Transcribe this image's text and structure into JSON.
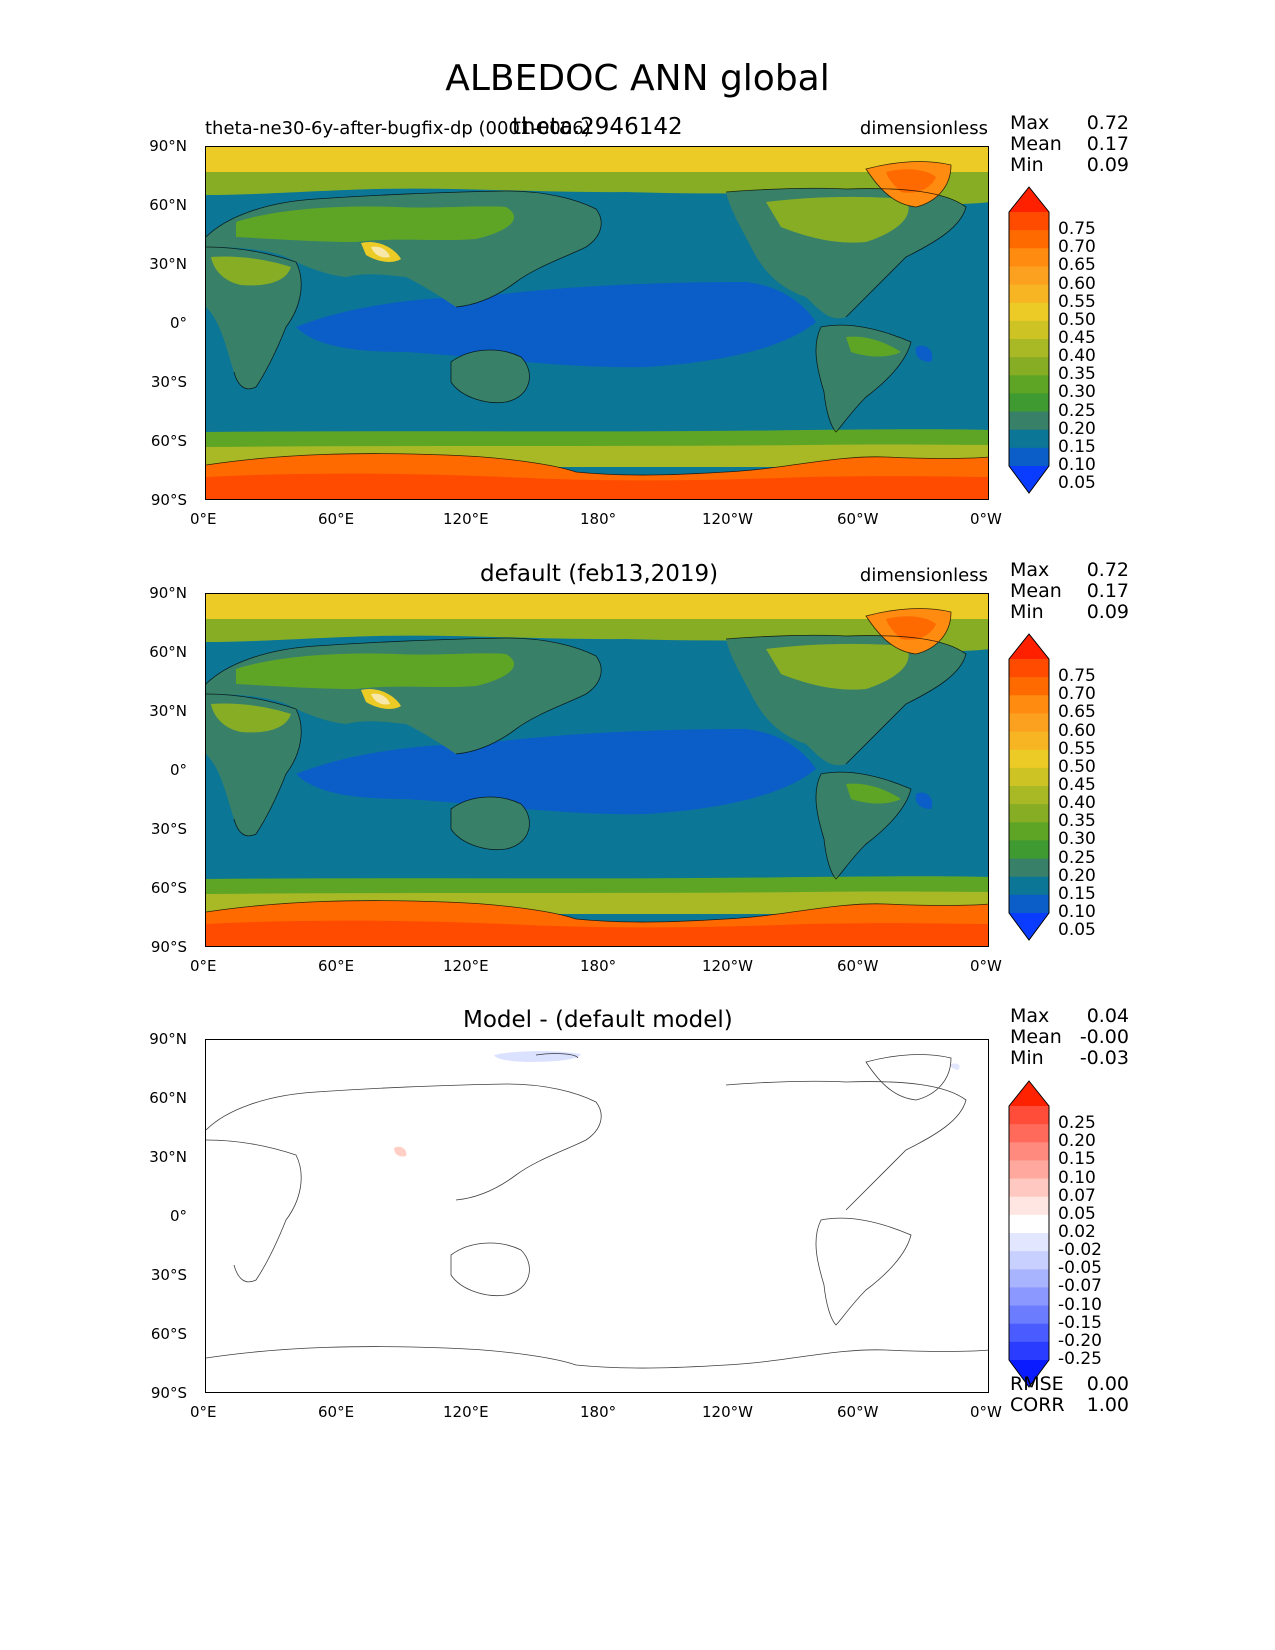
{
  "suptitle": "ALBEDOC ANN global",
  "panels": [
    {
      "left_title": "theta-ne30-6y-after-bugfix-dp (0001-0006)",
      "center_title": "theta.2946142",
      "right_title": "dimensionless",
      "stats": {
        "max_label": "Max",
        "max": "0.72",
        "mean_label": "Mean",
        "mean": "0.17",
        "min_label": "Min",
        "min": "0.09"
      },
      "colorbar_labels": [
        "0.75",
        "0.70",
        "0.65",
        "0.60",
        "0.55",
        "0.50",
        "0.45",
        "0.40",
        "0.35",
        "0.30",
        "0.25",
        "0.20",
        "0.15",
        "0.10",
        "0.05"
      ],
      "colorbar_colors": [
        "#ff2000",
        "#ff4b00",
        "#ff6a00",
        "#ff8b10",
        "#fca020",
        "#f7b423",
        "#eccb26",
        "#cdc325",
        "#a9b925",
        "#86ad24",
        "#5ea526",
        "#3f9a31",
        "#398068",
        "#0c7696",
        "#0b5ec7",
        "#0a3cff"
      ]
    },
    {
      "left_title": "",
      "center_title": "default (feb13,2019)",
      "right_title": "dimensionless",
      "stats": {
        "max_label": "Max",
        "max": "0.72",
        "mean_label": "Mean",
        "mean": "0.17",
        "min_label": "Min",
        "min": "0.09"
      },
      "colorbar_labels": [
        "0.75",
        "0.70",
        "0.65",
        "0.60",
        "0.55",
        "0.50",
        "0.45",
        "0.40",
        "0.35",
        "0.30",
        "0.25",
        "0.20",
        "0.15",
        "0.10",
        "0.05"
      ],
      "colorbar_colors": [
        "#ff2000",
        "#ff4b00",
        "#ff6a00",
        "#ff8b10",
        "#fca020",
        "#f7b423",
        "#eccb26",
        "#cdc325",
        "#a9b925",
        "#86ad24",
        "#5ea526",
        "#3f9a31",
        "#398068",
        "#0c7696",
        "#0b5ec7",
        "#0a3cff"
      ]
    },
    {
      "left_title": "",
      "center_title": "Model - (default model)",
      "right_title": "",
      "stats": {
        "max_label": "Max",
        "max": "0.04",
        "mean_label": "Mean",
        "mean": "-0.00",
        "min_label": "Min",
        "min": "-0.03"
      },
      "colorbar_labels": [
        "0.25",
        "0.20",
        "0.15",
        "0.10",
        "0.07",
        "0.05",
        "0.02",
        "-0.02",
        "-0.05",
        "-0.07",
        "-0.10",
        "-0.15",
        "-0.20",
        "-0.25"
      ],
      "colorbar_colors": [
        "#ff2200",
        "#ff4d3a",
        "#ff6a5b",
        "#ff8a7d",
        "#ffa99e",
        "#ffc8c0",
        "#ffe6e2",
        "#ffffff",
        "#e2e6ff",
        "#c8d0ff",
        "#a9b4ff",
        "#8a98ff",
        "#6b7cff",
        "#4a5cff",
        "#2a3cff",
        "#0a1cff"
      ],
      "bottom_stats": {
        "rmse_label": "RMSE",
        "rmse": "0.00",
        "corr_label": "CORR",
        "corr": "1.00"
      }
    }
  ],
  "axes": {
    "lat_ticks": [
      "90°N",
      "60°N",
      "30°N",
      "0°",
      "30°S",
      "60°S",
      "90°S"
    ],
    "lon_ticks": [
      "0°E",
      "60°E",
      "120°E",
      "180°",
      "120°W",
      "60°W",
      "0°W"
    ]
  },
  "colors": {
    "ocean": "#0c7696",
    "tropical_ocean": "#0b5ec7",
    "land_mid": "#398068",
    "green": "#5ea526",
    "light_green": "#86ad24",
    "yellow_green": "#a9b925",
    "yellow": "#eccb26",
    "orange": "#ff6a00",
    "orange_red": "#ff4b00"
  }
}
